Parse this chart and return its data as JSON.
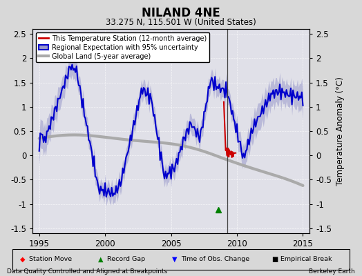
{
  "title": "NILAND 4NE",
  "subtitle": "33.275 N, 115.501 W (United States)",
  "xlabel_left": "Data Quality Controlled and Aligned at Breakpoints",
  "xlabel_right": "Berkeley Earth",
  "ylabel": "Temperature Anomaly (°C)",
  "xlim": [
    1994.5,
    2015.5
  ],
  "ylim": [
    -1.6,
    2.6
  ],
  "yticks": [
    -1.5,
    -1.0,
    -0.5,
    0.0,
    0.5,
    1.0,
    1.5,
    2.0,
    2.5
  ],
  "xticks": [
    1995,
    2000,
    2005,
    2010,
    2015
  ],
  "background_color": "#d8d8d8",
  "plot_bg_color": "#e0e0e8",
  "vertical_line_x": 2009.25,
  "record_gap_marker_x": 2008.6,
  "record_gap_marker_y": -1.12,
  "legend_labels": [
    "This Temperature Station (12-month average)",
    "Regional Expectation with 95% uncertainty",
    "Global Land (5-year average)"
  ],
  "station_color": "#cc0000",
  "regional_color": "#0000cc",
  "regional_fill_color": "#9999cc",
  "global_color": "#aaaaaa",
  "global_linewidth": 3.0,
  "regional_linewidth": 1.5,
  "station_linewidth": 1.5,
  "grid_color": "#ffffff",
  "grid_alpha": 0.7
}
